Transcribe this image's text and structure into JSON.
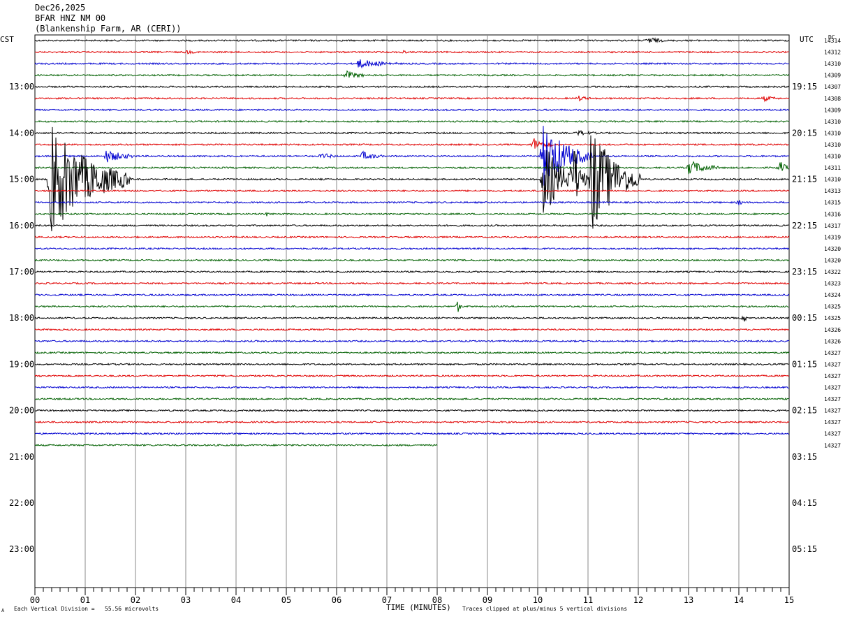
{
  "header": {
    "date": "Dec26,2025",
    "station": "BFAR HNZ NM 00",
    "location": "(Blankenship Farm, AR (CERI))"
  },
  "left_zone_label": "CST",
  "right_zone_label": "UTC",
  "dc_label": "DC",
  "footer": {
    "left_note": "Each Vertical Division =   55.56 microvolts",
    "xlabel": "TIME (MINUTES)",
    "right_note": "Traces clipped at plus/minus 5 vertical divisions",
    "corner_mark": "A"
  },
  "chart_data": {
    "type": "line",
    "title": "",
    "xlabel": "TIME (MINUTES)",
    "xlim": [
      0,
      15
    ],
    "x_ticks": [
      "00",
      "01",
      "02",
      "03",
      "04",
      "05",
      "06",
      "07",
      "08",
      "09",
      "10",
      "11",
      "12",
      "13",
      "14",
      "15"
    ],
    "left_time_labels": [
      "13:00",
      "14:00",
      "15:00",
      "16:00",
      "17:00",
      "18:00",
      "19:00",
      "20:00",
      "21:00",
      "22:00",
      "23:00"
    ],
    "right_time_labels": [
      "19:15",
      "20:15",
      "21:15",
      "22:15",
      "23:15",
      "00:15",
      "01:15",
      "02:15",
      "03:15",
      "04:15",
      "05:15"
    ],
    "rows_per_hour": 4,
    "trace_colors": [
      "#000000",
      "#e00000",
      "#0000d0",
      "#006000"
    ],
    "dc_values": [
      "14314",
      "14312",
      "14310",
      "14309",
      "14307",
      "14308",
      "14309",
      "14310",
      "14310",
      "14310",
      "14310",
      "14311",
      "14310",
      "14313",
      "14315",
      "14316",
      "14317",
      "14319",
      "14320",
      "14320",
      "14322",
      "14323",
      "14324",
      "14325",
      "14325",
      "14326",
      "14326",
      "14327",
      "14327",
      "14327",
      "14327",
      "14327",
      "14327",
      "14327",
      "14327",
      "14327"
    ],
    "partial_last_trace_end_minute": 8.0,
    "events": [
      {
        "row": 0,
        "minute": 12.2,
        "amp": 0.35,
        "dur": 0.3
      },
      {
        "row": 1,
        "minute": 3.0,
        "amp": 0.15,
        "dur": 0.2
      },
      {
        "row": 1,
        "minute": 7.3,
        "amp": 0.2,
        "dur": 0.1
      },
      {
        "row": 2,
        "minute": 6.4,
        "amp": 0.4,
        "dur": 0.8
      },
      {
        "row": 3,
        "minute": 6.2,
        "amp": 0.35,
        "dur": 0.4
      },
      {
        "row": 5,
        "minute": 10.8,
        "amp": 0.2,
        "dur": 0.3
      },
      {
        "row": 5,
        "minute": 14.5,
        "amp": 0.2,
        "dur": 0.3
      },
      {
        "row": 8,
        "minute": 10.8,
        "amp": 0.2,
        "dur": 0.4
      },
      {
        "row": 9,
        "minute": 9.9,
        "amp": 0.6,
        "dur": 0.4
      },
      {
        "row": 10,
        "minute": 1.4,
        "amp": 0.6,
        "dur": 0.6
      },
      {
        "row": 10,
        "minute": 5.7,
        "amp": 0.3,
        "dur": 0.3
      },
      {
        "row": 10,
        "minute": 6.5,
        "amp": 0.4,
        "dur": 0.4
      },
      {
        "row": 10,
        "minute": 10.1,
        "amp": 2.8,
        "dur": 1.0
      },
      {
        "row": 11,
        "minute": 13.0,
        "amp": 0.7,
        "dur": 0.6
      },
      {
        "row": 11,
        "minute": 14.8,
        "amp": 0.7,
        "dur": 0.2
      },
      {
        "row": 12,
        "minute": 0.3,
        "amp": 5.0,
        "dur": 1.6
      },
      {
        "row": 12,
        "minute": 10.1,
        "amp": 3.5,
        "dur": 0.7
      },
      {
        "row": 12,
        "minute": 10.7,
        "amp": 3.0,
        "dur": 0.3
      },
      {
        "row": 12,
        "minute": 11.05,
        "amp": 5.0,
        "dur": 1.0
      },
      {
        "row": 14,
        "minute": 14.0,
        "amp": 0.3,
        "dur": 0.1
      },
      {
        "row": 15,
        "minute": 4.6,
        "amp": 0.2,
        "dur": 0.1
      },
      {
        "row": 23,
        "minute": 8.4,
        "amp": 0.6,
        "dur": 0.1
      },
      {
        "row": 24,
        "minute": 14.1,
        "amp": 0.3,
        "dur": 0.1
      }
    ]
  }
}
